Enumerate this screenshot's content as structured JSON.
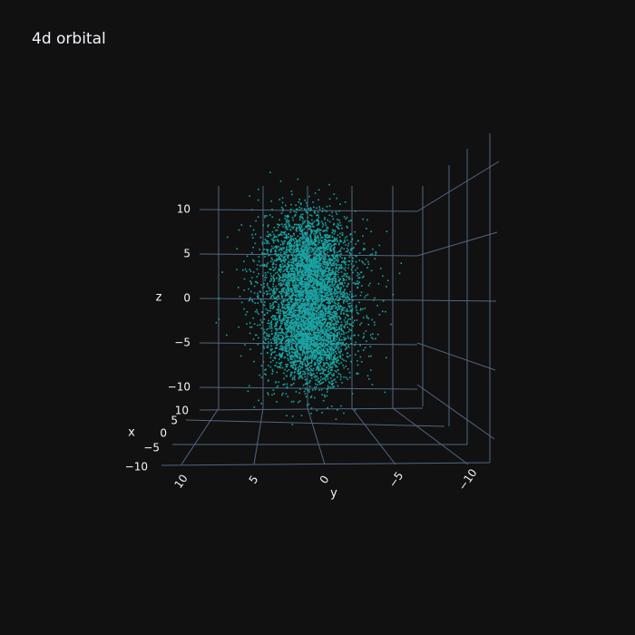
{
  "chart_data": {
    "type": "scatter3d",
    "title": "4d orbital",
    "marker_color": "#1aa3a3",
    "background": "#111111",
    "grid_color": "#506784",
    "axes": {
      "x": {
        "label": "x",
        "range": [
          -12,
          12
        ],
        "ticks": [
          "−10",
          "−5",
          "0",
          "5",
          "10"
        ]
      },
      "y": {
        "label": "y",
        "range": [
          -12,
          12
        ],
        "ticks": [
          "10",
          "5",
          "0",
          "−5",
          "−10"
        ]
      },
      "z": {
        "label": "z",
        "range": [
          -12,
          14
        ],
        "ticks": [
          "10",
          "5",
          "0",
          "−5",
          "−10"
        ]
      }
    },
    "point_cloud": {
      "count": 6000,
      "distribution": "4d_z2_lobes",
      "lobe_centers_z": [
        4,
        -4
      ],
      "extent": [
        -12,
        12
      ]
    }
  }
}
